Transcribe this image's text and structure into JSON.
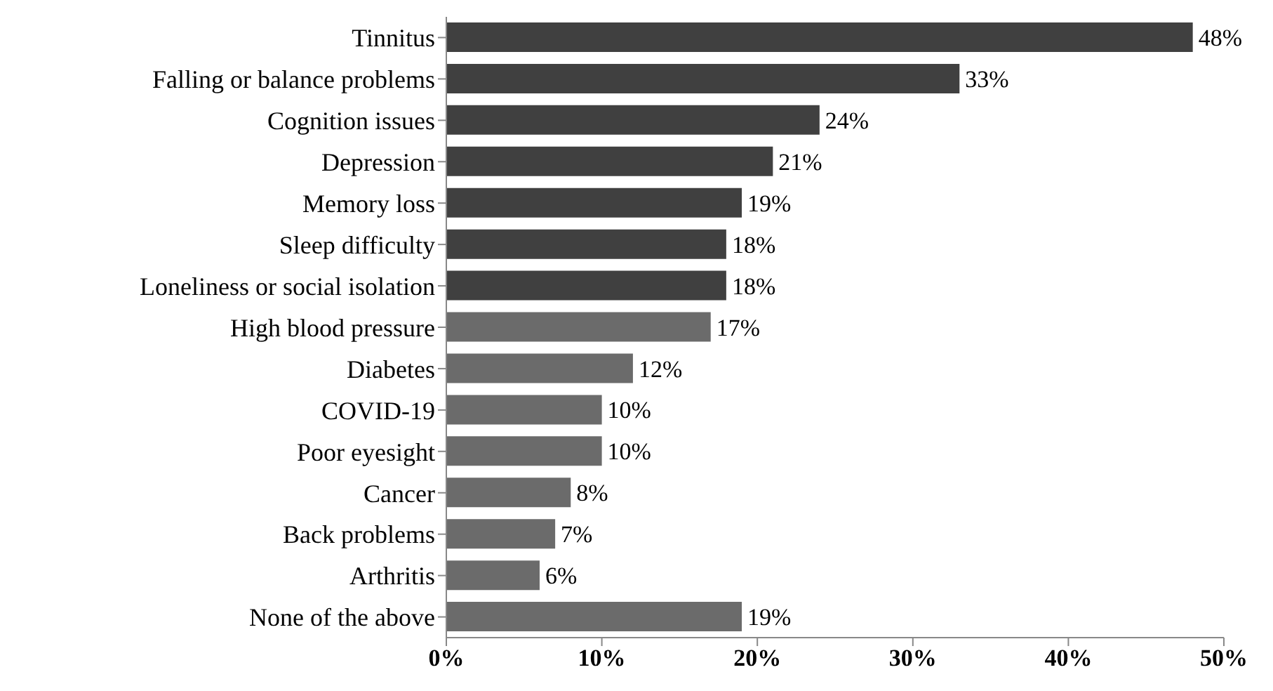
{
  "chart_data": {
    "type": "bar",
    "orientation": "horizontal",
    "categories": [
      "Tinnitus",
      "Falling or balance problems",
      "Cognition issues",
      "Depression",
      "Memory loss",
      "Sleep difficulty",
      "Loneliness or social isolation",
      "High blood pressure",
      "Diabetes",
      "COVID-19",
      "Poor eyesight",
      "Cancer",
      "Back problems",
      "Arthritis",
      "None of the above"
    ],
    "values": [
      48,
      33,
      24,
      21,
      19,
      18,
      18,
      17,
      12,
      10,
      10,
      8,
      7,
      6,
      19
    ],
    "value_labels": [
      "48%",
      "33%",
      "24%",
      "21%",
      "19%",
      "18%",
      "18%",
      "17%",
      "12%",
      "10%",
      "10%",
      "8%",
      "7%",
      "6%",
      "19%"
    ],
    "colors": [
      "#404040",
      "#404040",
      "#404040",
      "#404040",
      "#404040",
      "#404040",
      "#404040",
      "#6b6b6b",
      "#6b6b6b",
      "#6b6b6b",
      "#6b6b6b",
      "#6b6b6b",
      "#6b6b6b",
      "#6b6b6b",
      "#6b6b6b"
    ],
    "xlim": [
      0,
      50
    ],
    "xticks": [
      {
        "value": 0,
        "label": "0%"
      },
      {
        "value": 10,
        "label": "10%"
      },
      {
        "value": 20,
        "label": "20%"
      },
      {
        "value": 30,
        "label": "30%"
      },
      {
        "value": 40,
        "label": "40%"
      },
      {
        "value": 50,
        "label": "50%"
      }
    ]
  }
}
